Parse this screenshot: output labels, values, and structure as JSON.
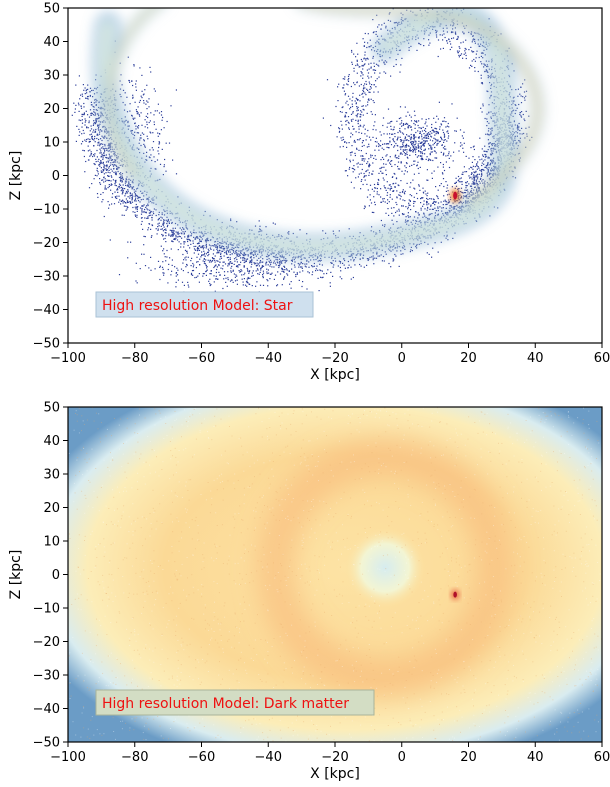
{
  "chart_data": [
    {
      "type": "heatmap",
      "title": "",
      "xlabel": "X [kpc]",
      "ylabel": "Z [kpc]",
      "xlim": [
        -100,
        60
      ],
      "ylim": [
        -50,
        50
      ],
      "xticks": [
        -100,
        -80,
        -60,
        -40,
        -20,
        0,
        20,
        40,
        60
      ],
      "yticks": [
        -50,
        -40,
        -30,
        -20,
        -10,
        0,
        10,
        20,
        30,
        40,
        50
      ],
      "xtick_labels": [
        "−100",
        "−80",
        "−60",
        "−40",
        "−20",
        "0",
        "20",
        "40",
        "60"
      ],
      "ytick_labels": [
        "−50",
        "−40",
        "−30",
        "−20",
        "−10",
        "0",
        "10",
        "20",
        "30",
        "40",
        "50"
      ],
      "annotation": "High resolution Model: Star",
      "colormap": "RdYlBu_r",
      "background": "#ffffff",
      "features": [
        {
          "kind": "stream-arc",
          "x_range": [
            -90,
            30
          ],
          "z_range": [
            -22,
            48
          ]
        },
        {
          "kind": "loop",
          "center": [
            5,
            15
          ],
          "radius": 25
        },
        {
          "kind": "satellite-peak",
          "x": 16,
          "z": -6
        }
      ]
    },
    {
      "type": "heatmap",
      "title": "",
      "xlabel": "X [kpc]",
      "ylabel": "Z [kpc]",
      "xlim": [
        -100,
        60
      ],
      "ylim": [
        -50,
        50
      ],
      "xticks": [
        -100,
        -80,
        -60,
        -40,
        -20,
        0,
        20,
        40,
        60
      ],
      "yticks": [
        -50,
        -40,
        -30,
        -20,
        -10,
        0,
        10,
        20,
        30,
        40,
        50
      ],
      "xtick_labels": [
        "−100",
        "−80",
        "−60",
        "−40",
        "−20",
        "0",
        "20",
        "40",
        "60"
      ],
      "ytick_labels": [
        "−50",
        "−40",
        "−30",
        "−20",
        "−10",
        "0",
        "10",
        "20",
        "30",
        "40",
        "50"
      ],
      "annotation": "High resolution Model: Dark matter",
      "colormap": "RdYlBu_r",
      "features": [
        {
          "kind": "diffuse-halo",
          "center": [
            -20,
            0
          ]
        },
        {
          "kind": "ring",
          "center": [
            -5,
            0
          ],
          "radius": 20
        },
        {
          "kind": "satellite-peak",
          "x": 16,
          "z": -6
        }
      ]
    }
  ]
}
